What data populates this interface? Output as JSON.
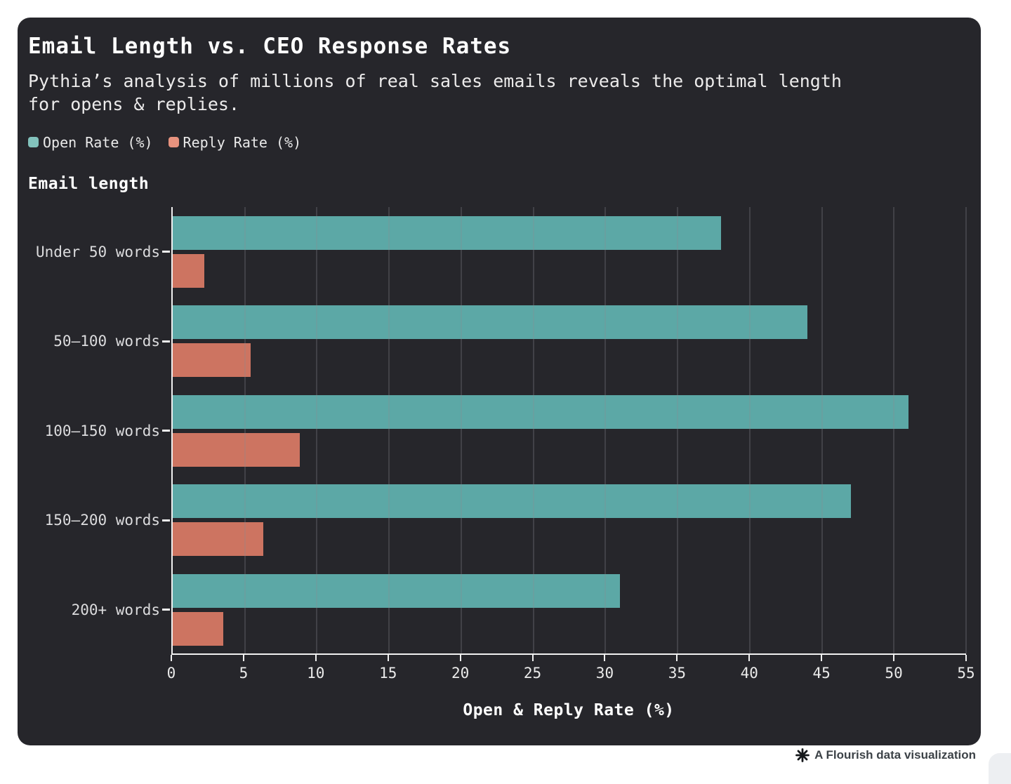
{
  "page": {
    "background": "#ffffff",
    "card_background": "#26262b"
  },
  "card": {
    "title": "Email Length vs. CEO Response Rates",
    "subtitle": "Pythia’s analysis of millions of real sales emails reveals the optimal length for opens & replies."
  },
  "legend": {
    "items": [
      {
        "label": "Open Rate (%)",
        "swatch_color": "#82c2bc"
      },
      {
        "label": "Reply Rate (%)",
        "swatch_color": "#e7927e"
      }
    ]
  },
  "chart_data": {
    "type": "bar",
    "orientation": "horizontal",
    "title": "Email Length vs. CEO Response Rates",
    "subtitle": "Pythia’s analysis of millions of real sales emails reveals the optimal length for opens & replies.",
    "y_axis_title": "Email length",
    "xlabel": "Open & Reply Rate (%)",
    "categories": [
      "Under 50 words",
      "50–100 words",
      "100–150 words",
      "150–200 words",
      "200+ words"
    ],
    "series": [
      {
        "name": "Open Rate (%)",
        "color": "#5ca8a6",
        "values": [
          38,
          44,
          51,
          47,
          31
        ]
      },
      {
        "name": "Reply Rate (%)",
        "color": "#cd7461",
        "values": [
          2.2,
          5.4,
          8.8,
          6.3,
          3.5
        ]
      }
    ],
    "xlim": [
      0,
      55
    ],
    "x_ticks": [
      0,
      5,
      10,
      15,
      20,
      25,
      30,
      35,
      40,
      45,
      50,
      55
    ],
    "grid": true,
    "legend_position": "top-left",
    "colors": {
      "grid": "rgba(136,136,146,0.55)",
      "axis": "#f0f0f0",
      "category_label": "#dcdcde",
      "tick_label": "#eaeaea"
    }
  },
  "footer": {
    "attribution": "A Flourish data visualization",
    "icon": "flourish-asterisk"
  }
}
